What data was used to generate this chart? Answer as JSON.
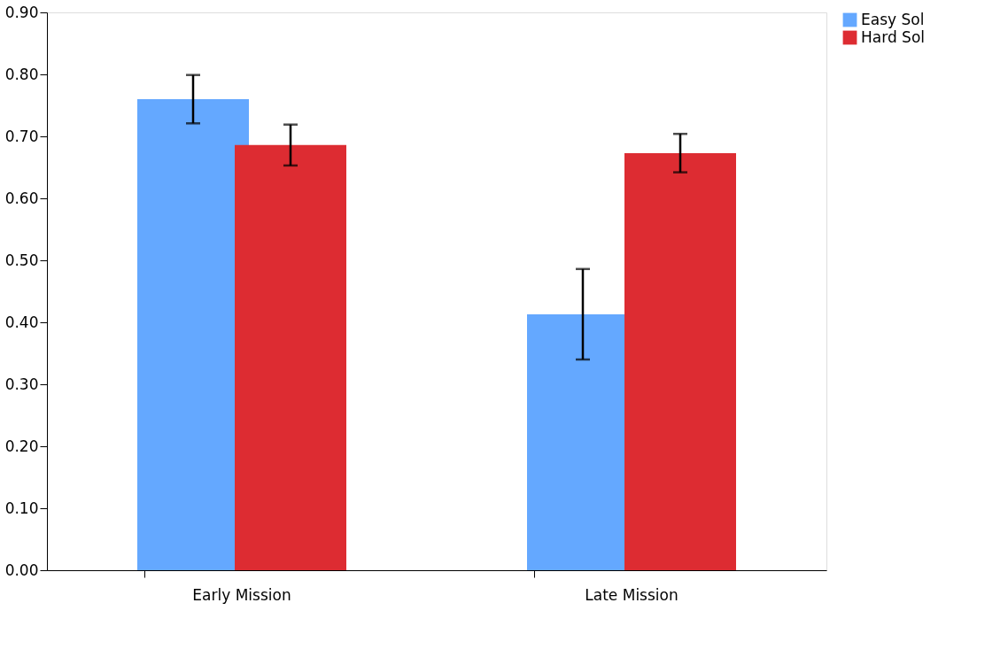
{
  "chart_data": {
    "type": "bar",
    "categories": [
      "Early Mission",
      "Late Mission"
    ],
    "series": [
      {
        "name": "Easy Sol",
        "color": "#64a8ff",
        "values": [
          0.76,
          0.413
        ],
        "errors": [
          [
            0.721,
            0.799
          ],
          [
            0.34,
            0.486
          ]
        ]
      },
      {
        "name": "Hard Sol",
        "color": "#dd2c32",
        "values": [
          0.686,
          0.673
        ],
        "errors": [
          [
            0.653,
            0.719
          ],
          [
            0.642,
            0.704
          ]
        ]
      }
    ],
    "ylim": [
      0,
      0.9
    ],
    "yticks": [
      {
        "value": 0,
        "label": "0.00"
      },
      {
        "value": 0.1,
        "label": "0.10"
      },
      {
        "value": 0.2,
        "label": "0.20"
      },
      {
        "value": 0.3,
        "label": "0.30"
      },
      {
        "value": 0.4,
        "label": "0.40"
      },
      {
        "value": 0.5,
        "label": "0.50"
      },
      {
        "value": 0.6,
        "label": "0.60"
      },
      {
        "value": 0.7,
        "label": "0.70"
      },
      {
        "value": 0.8,
        "label": "0.80"
      },
      {
        "value": 0.9,
        "label": "0.90"
      }
    ],
    "grid": false,
    "legend": "right"
  }
}
